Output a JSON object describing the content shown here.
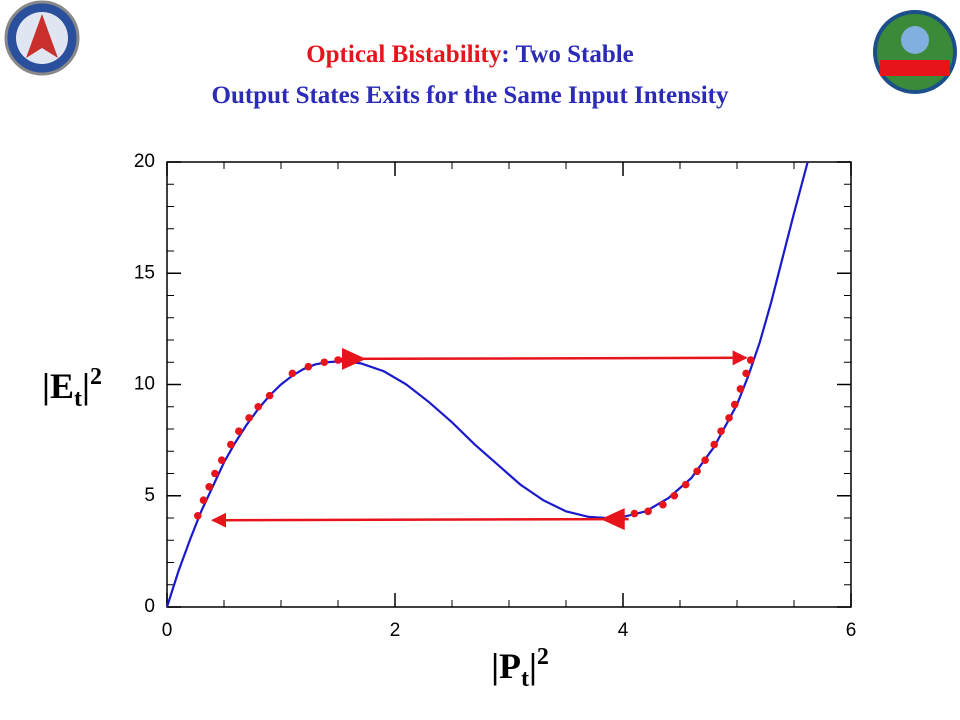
{
  "chart_data": {
    "type": "line",
    "title": [
      "Optical Bistability",
      ": Two Stable",
      "Output States Exits for the Same Input Intensity"
    ],
    "title_colors": [
      "#e8141c",
      "#2b2bb8",
      "#2b2bb8"
    ],
    "x_label": [
      "|P",
      "t",
      "|",
      "2"
    ],
    "y_label": [
      "|E",
      "t",
      "|",
      "2"
    ],
    "xlim": [
      0,
      6
    ],
    "xticks": [
      0,
      2,
      4,
      6
    ],
    "xminorticks": [
      0.5,
      1,
      1.5,
      2.5,
      3,
      3.5,
      4.5,
      5,
      5.5
    ],
    "ylim": [
      0,
      20
    ],
    "yticks": [
      0,
      5,
      10,
      15,
      20
    ],
    "yminorticks": [
      1,
      2,
      3,
      4,
      6,
      7,
      8,
      9,
      11,
      12,
      13,
      14,
      16,
      17,
      18,
      19
    ],
    "series": [
      {
        "type": "line",
        "color": "#1a1acc",
        "x": [
          0,
          0.1,
          0.2,
          0.3,
          0.4,
          0.5,
          0.6,
          0.7,
          0.8,
          0.9,
          1.0,
          1.1,
          1.2,
          1.3,
          1.4,
          1.55,
          1.7,
          1.9,
          2.1,
          2.3,
          2.5,
          2.7,
          2.9,
          3.1,
          3.3,
          3.5,
          3.7,
          3.85,
          4.0,
          4.2,
          4.4,
          4.6,
          4.8,
          5.0,
          5.1,
          5.2,
          5.3,
          5.4,
          5.5,
          5.62
        ],
        "values": [
          0,
          1.6,
          3.0,
          4.3,
          5.4,
          6.5,
          7.4,
          8.2,
          8.9,
          9.5,
          10.0,
          10.4,
          10.7,
          10.9,
          11.0,
          11.05,
          10.95,
          10.6,
          10.0,
          9.2,
          8.3,
          7.3,
          6.4,
          5.5,
          4.8,
          4.3,
          4.05,
          4.0,
          4.05,
          4.3,
          4.9,
          5.8,
          7.2,
          9.1,
          10.4,
          11.9,
          13.7,
          15.7,
          17.7,
          20
        ]
      },
      {
        "type": "scatter",
        "color": "#e8141c",
        "x": [
          0.27,
          0.32,
          0.37,
          0.42,
          0.48,
          0.56,
          0.63,
          0.72,
          0.8,
          0.9,
          1.1,
          1.24,
          1.38,
          1.5,
          3.95,
          4.1,
          4.22,
          4.35,
          4.45,
          4.55,
          4.65,
          4.72,
          4.8,
          4.86,
          4.93,
          4.98,
          5.03,
          5.08,
          5.12
        ],
        "values": [
          4.1,
          4.8,
          5.4,
          6.0,
          6.6,
          7.3,
          7.9,
          8.5,
          9.0,
          9.5,
          10.5,
          10.8,
          11.0,
          11.1,
          4.1,
          4.2,
          4.3,
          4.6,
          5.0,
          5.5,
          6.1,
          6.6,
          7.3,
          7.9,
          8.5,
          9.1,
          9.8,
          10.5,
          11.1
        ]
      }
    ],
    "arrows": [
      {
        "color": "#e8141c",
        "x": [
          1.5,
          5.08
        ],
        "y": [
          11.15,
          11.2
        ]
      },
      {
        "color": "#e8141c",
        "x": [
          4.05,
          0.4
        ],
        "y": [
          3.95,
          3.9
        ]
      }
    ]
  }
}
